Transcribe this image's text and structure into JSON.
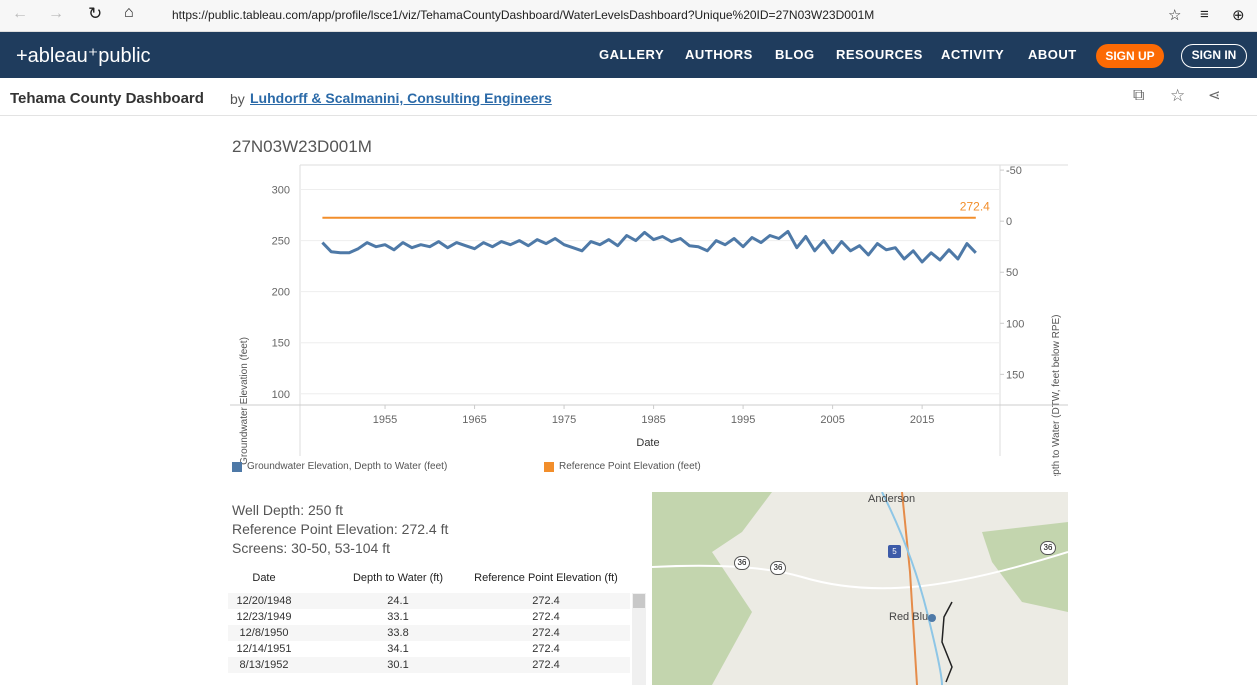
{
  "browser": {
    "url": "https://public.tableau.com/app/profile/lsce1/viz/TehamaCountyDashboard/WaterLevelsDashboard?Unique%20ID=27N03W23D001M"
  },
  "nav": {
    "logo": "+ableau⁺public",
    "items": [
      "GALLERY",
      "AUTHORS",
      "BLOG",
      "RESOURCES",
      "ACTIVITY",
      "ABOUT"
    ],
    "sign_up": "SIGN UP",
    "sign_in": "SIGN IN"
  },
  "header": {
    "title": "Tehama County Dashboard",
    "by": "by",
    "author": "Luhdorff & Scalmanini, Consulting Engineers"
  },
  "chart": {
    "type": "line",
    "title": "27N03W23D001M",
    "y_label": "Groundwater Elevation (feet)",
    "y2_label": "Depth to Water (DTW, feet below RPE)",
    "x_label": "Date",
    "xlim": [
      1945.5,
      2023.7
    ],
    "xticks": [
      1955,
      1965,
      1975,
      1985,
      1995,
      2005,
      2015
    ],
    "ylim": [
      89,
      324
    ],
    "yticks": [
      100,
      150,
      200,
      250,
      300
    ],
    "y2lim": [
      -55,
      180
    ],
    "y2_inverted": true,
    "y2ticks": [
      -50,
      0,
      50,
      100,
      150
    ],
    "grid": true,
    "series": [
      {
        "name": "Groundwater Elevation, Depth to Water (feet)",
        "color": "#4e79a7",
        "x": [
          1948,
          1949,
          1950,
          1951,
          1952,
          1953,
          1954,
          1955,
          1956,
          1957,
          1958,
          1959,
          1960,
          1961,
          1962,
          1963,
          1964,
          1965,
          1966,
          1967,
          1968,
          1969,
          1970,
          1971,
          1972,
          1973,
          1974,
          1975,
          1976,
          1977,
          1978,
          1979,
          1980,
          1981,
          1982,
          1983,
          1984,
          1985,
          1986,
          1987,
          1988,
          1989,
          1990,
          1991,
          1992,
          1993,
          1994,
          1995,
          1996,
          1997,
          1998,
          1999,
          2000,
          2001,
          2002,
          2003,
          2004,
          2005,
          2006,
          2007,
          2008,
          2009,
          2010,
          2011,
          2012,
          2013,
          2014,
          2015,
          2016,
          2017,
          2018,
          2019,
          2020,
          2021
        ],
        "values": [
          248,
          239,
          238,
          238,
          242,
          248,
          244,
          246,
          241,
          248,
          243,
          246,
          244,
          249,
          243,
          248,
          245,
          242,
          248,
          244,
          249,
          246,
          250,
          245,
          251,
          247,
          252,
          246,
          243,
          240,
          249,
          246,
          251,
          245,
          255,
          250,
          258,
          251,
          254,
          249,
          252,
          245,
          244,
          240,
          250,
          246,
          252,
          244,
          253,
          248,
          255,
          252,
          259,
          243,
          254,
          240,
          250,
          238,
          249,
          240,
          245,
          236,
          247,
          241,
          243,
          232,
          240,
          229,
          238,
          231,
          241,
          232,
          247,
          238
        ]
      },
      {
        "name": "Reference Point Elevation (feet)",
        "color": "#f28e2b",
        "x": [
          1948,
          2021
        ],
        "values": [
          272.4,
          272.4
        ]
      }
    ]
  },
  "info": {
    "well_depth": "Well Depth: 250 ft",
    "rpe": "Reference Point  Elevation: 272.4 ft",
    "screens": "Screens: 30-50, 53-104 ft"
  },
  "table": {
    "headers": [
      "Date",
      "Depth to Water (ft)",
      "Reference Point Elevation (ft)"
    ],
    "rows": [
      [
        "12/20/1948",
        24.1,
        272.4
      ],
      [
        "12/23/1949",
        33.1,
        272.4
      ],
      [
        "12/8/1950",
        33.8,
        272.4
      ],
      [
        "12/14/1951",
        34.1,
        272.4
      ],
      [
        "8/13/1952",
        30.1,
        272.4
      ]
    ]
  },
  "map": {
    "labels": [
      "Anderson",
      "Red Blu"
    ],
    "shields": [
      "36",
      "36",
      "36"
    ],
    "interstate": "5"
  }
}
